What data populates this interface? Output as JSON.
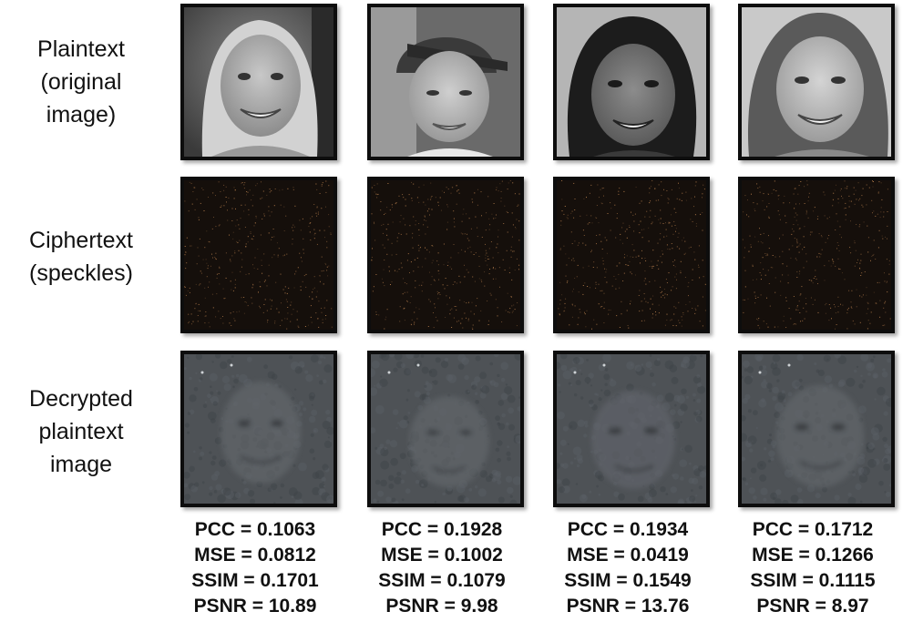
{
  "row_labels": {
    "plaintext": [
      "Plaintext",
      "(original",
      "image)"
    ],
    "ciphertext": [
      "Ciphertext",
      "(speckles)"
    ],
    "decrypted": [
      "Decrypted",
      "plaintext",
      "image"
    ]
  },
  "images": {
    "plaintext": [
      "face-photo-woman-blonde",
      "face-photo-boy-cap",
      "face-photo-woman-dark-hair",
      "face-photo-woman-smiling"
    ],
    "ciphertext": [
      "speckle-pattern",
      "speckle-pattern",
      "speckle-pattern",
      "speckle-pattern"
    ],
    "decrypted": [
      "blurred-face-reconstruction",
      "blurred-face-reconstruction",
      "blurred-face-reconstruction",
      "blurred-face-reconstruction"
    ]
  },
  "metrics": [
    {
      "pcc": "PCC = 0.1063",
      "mse": "MSE = 0.0812",
      "ssim": "SSIM = 0.1701",
      "psnr": "PSNR = 10.89"
    },
    {
      "pcc": "PCC = 0.1928",
      "mse": "MSE = 0.1002",
      "ssim": "SSIM = 0.1079",
      "psnr": "PSNR = 9.98"
    },
    {
      "pcc": "PCC = 0.1934",
      "mse": "MSE = 0.0419",
      "ssim": "SSIM = 0.1549",
      "psnr": "PSNR = 13.76"
    },
    {
      "pcc": "PCC = 0.1712",
      "mse": "MSE = 0.1266",
      "ssim": "SSIM = 0.1115",
      "psnr": "PSNR = 8.97"
    }
  ],
  "colors": {
    "frame": "#0d0d0d",
    "speckle_bg": "#150f0b",
    "speckle_dot": "#b07a4a",
    "decrypted_bg": "#4e5256"
  }
}
